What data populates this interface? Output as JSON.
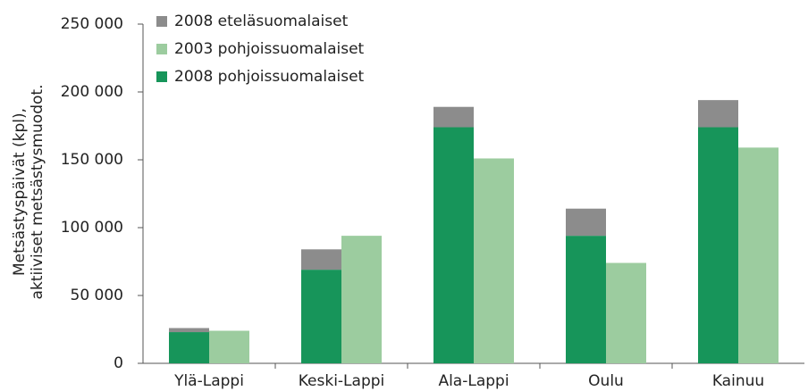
{
  "chart_data": {
    "type": "bar",
    "stacked": true,
    "y_label": [
      "Metsästyspäivät (kpl),",
      "aktiiviset metsästysmuodot."
    ],
    "categories": [
      "Ylä-Lappi",
      "Keski-Lappi",
      "Ala-Lappi",
      "Oulu",
      "Kainuu"
    ],
    "series": [
      {
        "name": "2008 eteläsuomalaiset",
        "color": "#8c8c8c",
        "stack": 0,
        "values": [
          3000,
          15000,
          15000,
          20000,
          20000
        ]
      },
      {
        "name": "2003 pohjoissuomalaiset",
        "color": "#9ccc9f",
        "stack": 1,
        "values": [
          24000,
          94000,
          151000,
          74000,
          159000
        ]
      },
      {
        "name": "2008 pohjoissuomalaiset",
        "color": "#17955a",
        "stack": 0,
        "values": [
          23000,
          69000,
          174000,
          94000,
          174000
        ]
      }
    ],
    "ylim": [
      0,
      250000
    ],
    "yticks": [
      0,
      {
        "value": 50000,
        "label": "50 000"
      },
      {
        "value": 100000,
        "label": "100 000"
      },
      {
        "value": 150000,
        "label": "150 000"
      },
      {
        "value": 200000,
        "label": "200 000"
      },
      {
        "value": 250000,
        "label": "250 000"
      }
    ],
    "legend": "top-left"
  }
}
